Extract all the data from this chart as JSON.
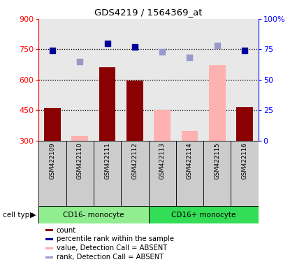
{
  "title": "GDS4219 / 1564369_at",
  "samples": [
    "GSM422109",
    "GSM422110",
    "GSM422111",
    "GSM422112",
    "GSM422113",
    "GSM422114",
    "GSM422115",
    "GSM422116"
  ],
  "bar_values": [
    460,
    322,
    660,
    595,
    450,
    345,
    670,
    465
  ],
  "bar_absent": [
    false,
    true,
    false,
    false,
    true,
    true,
    true,
    false
  ],
  "percentile_values": [
    74,
    65,
    80,
    77,
    73,
    68,
    78,
    74
  ],
  "percentile_absent": [
    false,
    true,
    false,
    false,
    true,
    true,
    true,
    false
  ],
  "bar_color_present": "#8B0000",
  "bar_color_absent": "#FFB0B0",
  "dot_color_present": "#000099",
  "dot_color_absent": "#9999CC",
  "ylim_left": [
    300,
    900
  ],
  "ylim_right": [
    0,
    100
  ],
  "yticks_left": [
    300,
    450,
    600,
    750,
    900
  ],
  "yticks_right": [
    0,
    25,
    50,
    75,
    100
  ],
  "ytick_labels_right": [
    "0",
    "25",
    "50",
    "75",
    "100%"
  ],
  "hlines": [
    450,
    600,
    750
  ],
  "groups": [
    {
      "label": "CD16- monocyte",
      "indices": [
        0,
        1,
        2,
        3
      ],
      "color": "#90EE90"
    },
    {
      "label": "CD16+ monocyte",
      "indices": [
        4,
        5,
        6,
        7
      ],
      "color": "#33DD55"
    }
  ],
  "cell_type_label": "cell type",
  "legend_items": [
    {
      "label": "count",
      "color": "#8B0000"
    },
    {
      "label": "percentile rank within the sample",
      "color": "#000099"
    },
    {
      "label": "value, Detection Call = ABSENT",
      "color": "#FFB0B0"
    },
    {
      "label": "rank, Detection Call = ABSENT",
      "color": "#9999CC"
    }
  ],
  "bar_width": 0.6,
  "col_bg_color": "#CCCCCC"
}
